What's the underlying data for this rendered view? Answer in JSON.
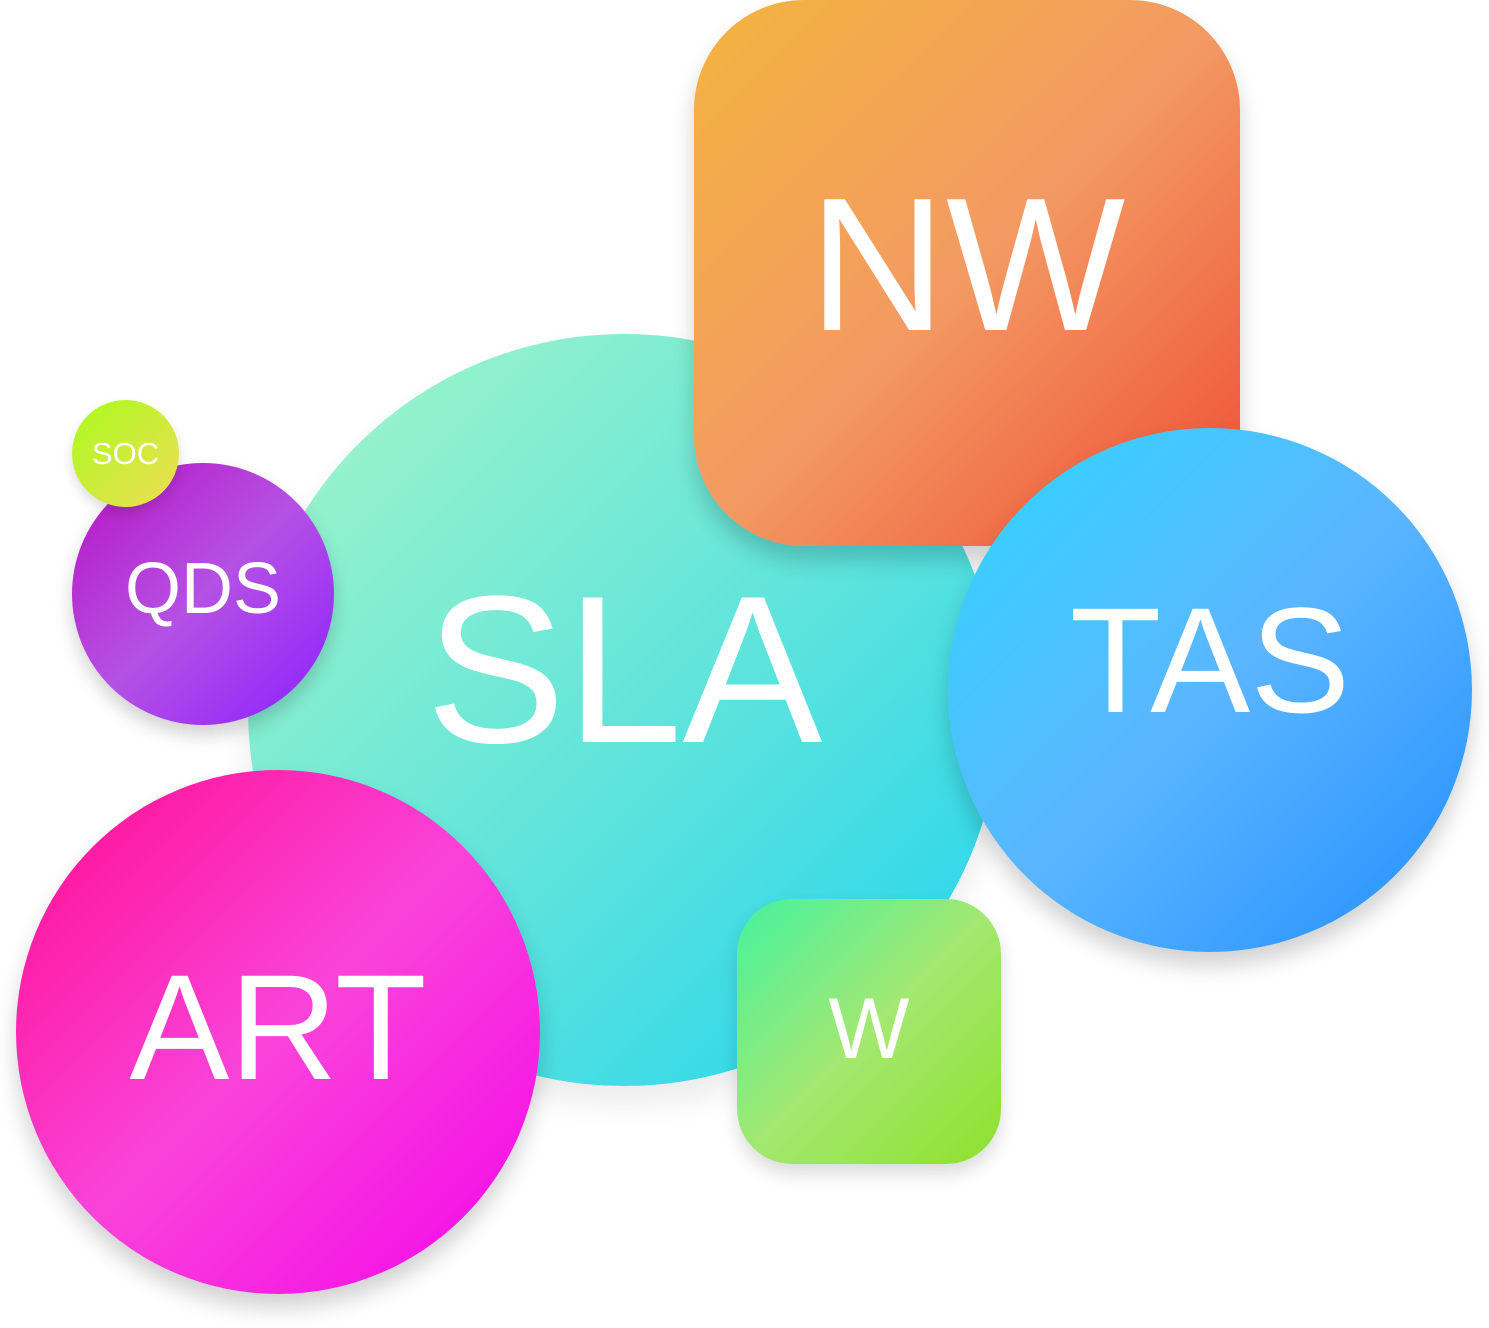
{
  "bubbles": {
    "sla": {
      "label": "SLA",
      "gradient": [
        "#a8f7c6",
        "#20d3ef"
      ]
    },
    "nw": {
      "label": "NW",
      "gradient": [
        "#f3b43e",
        "#f39a63",
        "#ee4c34"
      ]
    },
    "tas": {
      "label": "TAS",
      "gradient": [
        "#2fd6ff",
        "#5bb6ff",
        "#228efe"
      ]
    },
    "qds": {
      "label": "QDS",
      "gradient": [
        "#b712c1",
        "#b551e4",
        "#8b1fff"
      ]
    },
    "soc": {
      "label": "SOC",
      "gradient": [
        "#a9fb1c",
        "#f0dc56"
      ]
    },
    "art": {
      "label": "ART",
      "gradient": [
        "#ff0c8e",
        "#fa43d9",
        "#f305ea"
      ]
    },
    "w": {
      "label": "W",
      "gradient": [
        "#45f2a0",
        "#a3e871",
        "#8ee12c"
      ]
    }
  }
}
